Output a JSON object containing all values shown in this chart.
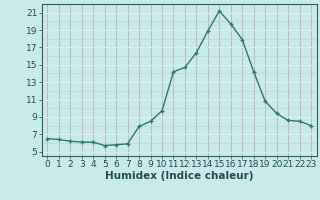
{
  "x": [
    0,
    1,
    2,
    3,
    4,
    5,
    6,
    7,
    8,
    9,
    10,
    11,
    12,
    13,
    14,
    15,
    16,
    17,
    18,
    19,
    20,
    21,
    22,
    23
  ],
  "y": [
    6.5,
    6.4,
    6.2,
    6.1,
    6.1,
    5.7,
    5.8,
    5.9,
    7.9,
    8.5,
    9.7,
    14.2,
    14.7,
    16.4,
    18.9,
    21.2,
    19.7,
    17.9,
    14.2,
    10.8,
    9.4,
    8.6,
    8.5,
    8.0
  ],
  "line_color": "#2d7a6a",
  "marker": "+",
  "marker_size": 3.5,
  "marker_lw": 1.0,
  "bg_color": "#c8eaea",
  "grid_color_vertical": "#c8a0a0",
  "grid_color_horizontal": "#b8d8d8",
  "xlabel": "Humidex (Indice chaleur)",
  "xlabel_fontsize": 7.5,
  "xlabel_color": "#1a5050",
  "ytick_labels": [
    "5",
    "7",
    "9",
    "11",
    "13",
    "15",
    "17",
    "19",
    "21"
  ],
  "ytick_vals": [
    5,
    7,
    9,
    11,
    13,
    15,
    17,
    19,
    21
  ],
  "xtick_vals": [
    0,
    1,
    2,
    3,
    4,
    5,
    6,
    7,
    8,
    9,
    10,
    11,
    12,
    13,
    14,
    15,
    16,
    17,
    18,
    19,
    20,
    21,
    22,
    23
  ],
  "ylim": [
    4.5,
    22.0
  ],
  "xlim": [
    -0.5,
    23.5
  ],
  "tick_fontsize": 6.5,
  "tick_color": "#1a5050",
  "line_width": 1.0,
  "spine_color": "#2d6060"
}
